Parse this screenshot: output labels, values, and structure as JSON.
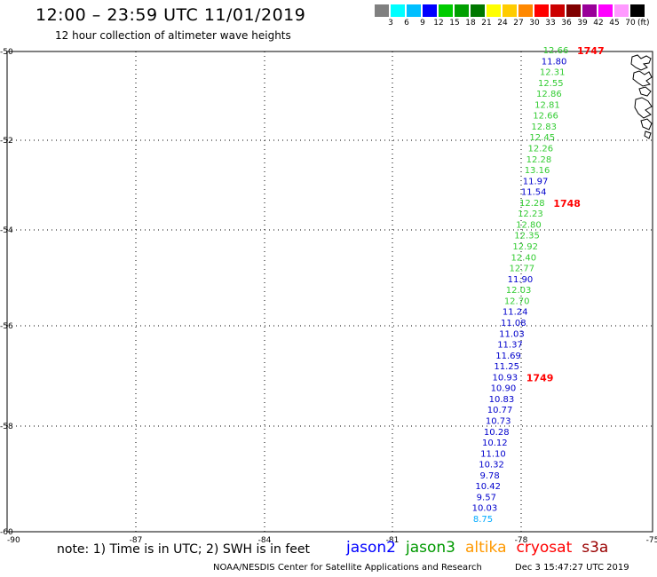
{
  "header": {
    "title": "12:00 – 23:59 UTC 11/01/2019",
    "subtitle": "12 hour collection of altimeter wave heights"
  },
  "colorbar": {
    "unit": "(ft)",
    "swatches": [
      "#808080",
      "#00ffff",
      "#00bfff",
      "#0000ff",
      "#00cc00",
      "#00a000",
      "#007800",
      "#ffff00",
      "#ffcc00",
      "#ff8800",
      "#ff0000",
      "#cc0000",
      "#800000",
      "#990099",
      "#ff00ff",
      "#ff99ff",
      "#000000"
    ],
    "labels": [
      "3",
      "6",
      "9",
      "12",
      "15",
      "18",
      "21",
      "24",
      "27",
      "30",
      "33",
      "36",
      "39",
      "42",
      "45",
      "70"
    ]
  },
  "map": {
    "lon_range": [
      -90,
      -75
    ],
    "lat_range": [
      -60,
      -50
    ],
    "grid": true,
    "lon_ticks": [
      "-90",
      "-87",
      "-84",
      "-81",
      "-78",
      "-75"
    ],
    "lat_ticks": [
      "-50",
      "-52",
      "-54",
      "-56",
      "-58",
      "-60"
    ],
    "track_labels": [
      {
        "text": "1747",
        "color": "#ff0000"
      },
      {
        "text": "1748",
        "color": "#ff0000"
      },
      {
        "text": "1749",
        "color": "#ff0000"
      }
    ],
    "wave_heights": [
      {
        "v": "12.66",
        "c": "#33cc33"
      },
      {
        "v": "11.80",
        "c": "#0000cc"
      },
      {
        "v": "12.31",
        "c": "#33cc33"
      },
      {
        "v": "12.55",
        "c": "#33cc33"
      },
      {
        "v": "12.86",
        "c": "#33cc33"
      },
      {
        "v": "12.81",
        "c": "#33cc33"
      },
      {
        "v": "12.66",
        "c": "#33cc33"
      },
      {
        "v": "12.83",
        "c": "#33cc33"
      },
      {
        "v": "12.45",
        "c": "#33cc33"
      },
      {
        "v": "12.26",
        "c": "#33cc33"
      },
      {
        "v": "12.28",
        "c": "#33cc33"
      },
      {
        "v": "13.16",
        "c": "#33cc33"
      },
      {
        "v": "11.97",
        "c": "#0000cc"
      },
      {
        "v": "11.54",
        "c": "#0000cc"
      },
      {
        "v": "12.28",
        "c": "#33cc33"
      },
      {
        "v": "12.23",
        "c": "#33cc33"
      },
      {
        "v": "12.80",
        "c": "#33cc33"
      },
      {
        "v": "12.35",
        "c": "#33cc33"
      },
      {
        "v": "12.92",
        "c": "#33cc33"
      },
      {
        "v": "12.40",
        "c": "#33cc33"
      },
      {
        "v": "12.77",
        "c": "#33cc33"
      },
      {
        "v": "11.90",
        "c": "#0000cc"
      },
      {
        "v": "12.03",
        "c": "#33cc33"
      },
      {
        "v": "12.70",
        "c": "#33cc33"
      },
      {
        "v": "11.24",
        "c": "#0000cc"
      },
      {
        "v": "11.08",
        "c": "#0000cc"
      },
      {
        "v": "11.03",
        "c": "#0000cc"
      },
      {
        "v": "11.37",
        "c": "#0000cc"
      },
      {
        "v": "11.69",
        "c": "#0000cc"
      },
      {
        "v": "11.25",
        "c": "#0000cc"
      },
      {
        "v": "10.93",
        "c": "#0000cc"
      },
      {
        "v": "10.90",
        "c": "#0000cc"
      },
      {
        "v": "10.83",
        "c": "#0000cc"
      },
      {
        "v": "10.77",
        "c": "#0000cc"
      },
      {
        "v": "10.73",
        "c": "#0000cc"
      },
      {
        "v": "10.28",
        "c": "#0000cc"
      },
      {
        "v": "10.12",
        "c": "#0000cc"
      },
      {
        "v": "11.10",
        "c": "#0000cc"
      },
      {
        "v": "10.32",
        "c": "#0000cc"
      },
      {
        "v": "9.78",
        "c": "#0000cc"
      },
      {
        "v": "10.42",
        "c": "#0000cc"
      },
      {
        "v": "9.57",
        "c": "#0000cc"
      },
      {
        "v": "10.03",
        "c": "#0000cc"
      },
      {
        "v": "8.75",
        "c": "#00aaff"
      }
    ]
  },
  "note": "note: 1) Time is in UTC; 2) SWH is in feet",
  "legend": [
    {
      "name": "jason2",
      "color": "#0000ff"
    },
    {
      "name": "jason3",
      "color": "#009900"
    },
    {
      "name": "altika",
      "color": "#ff9900"
    },
    {
      "name": "cryosat",
      "color": "#ff0000"
    },
    {
      "name": "s3a",
      "color": "#990000"
    }
  ],
  "footer": {
    "credit": "NOAA/NESDIS Center for Satellite Applications and Research",
    "timestamp": "Dec  3 15:47:27 UTC 2019"
  }
}
